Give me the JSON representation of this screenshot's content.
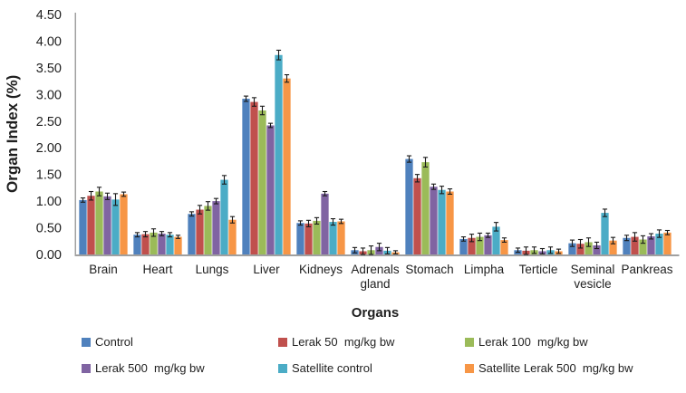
{
  "chart_data": {
    "type": "bar",
    "title": "",
    "ylabel": "Organ Index (%)",
    "xlabel": "Organs",
    "ylim": [
      0,
      4.5
    ],
    "ytick_step": 0.5,
    "ytick_decimals": 2,
    "grid": false,
    "legend_position": "bottom",
    "error_bars": true,
    "categories": [
      "Brain",
      "Heart",
      "Lungs",
      "Liver",
      "Kidneys",
      "Adrenals\ngland",
      "Stomach",
      "Limpha",
      "Terticle",
      "Seminal\nvesicle",
      "Pankreas"
    ],
    "series": [
      {
        "name": "Control",
        "color": "#4F81BD",
        "values": [
          1.02,
          0.37,
          0.76,
          2.92,
          0.59,
          0.08,
          1.79,
          0.29,
          0.08,
          0.21,
          0.31
        ],
        "errors": [
          0.04,
          0.04,
          0.04,
          0.05,
          0.04,
          0.05,
          0.06,
          0.04,
          0.04,
          0.06,
          0.05
        ]
      },
      {
        "name": "Lerak 50  mg/kg bw",
        "color": "#C0504D",
        "values": [
          1.1,
          0.38,
          0.84,
          2.86,
          0.58,
          0.06,
          1.43,
          0.31,
          0.07,
          0.2,
          0.33
        ],
        "errors": [
          0.08,
          0.05,
          0.08,
          0.08,
          0.06,
          0.06,
          0.07,
          0.07,
          0.07,
          0.08,
          0.08
        ]
      },
      {
        "name": "Lerak 100  mg/kg bw",
        "color": "#9BBB59",
        "values": [
          1.18,
          0.41,
          0.91,
          2.7,
          0.63,
          0.08,
          1.73,
          0.33,
          0.08,
          0.23,
          0.28
        ],
        "errors": [
          0.08,
          0.07,
          0.08,
          0.08,
          0.06,
          0.08,
          0.09,
          0.07,
          0.06,
          0.08,
          0.07
        ]
      },
      {
        "name": "Lerak 500  mg/kg bw",
        "color": "#8064A2",
        "values": [
          1.09,
          0.39,
          1.0,
          2.42,
          1.14,
          0.14,
          1.27,
          0.36,
          0.06,
          0.17,
          0.34
        ],
        "errors": [
          0.06,
          0.04,
          0.05,
          0.04,
          0.04,
          0.07,
          0.05,
          0.04,
          0.05,
          0.06,
          0.05
        ]
      },
      {
        "name": "Satellite control",
        "color": "#4BACC6",
        "values": [
          1.03,
          0.37,
          1.4,
          3.74,
          0.61,
          0.07,
          1.21,
          0.52,
          0.08,
          0.78,
          0.39
        ],
        "errors": [
          0.11,
          0.04,
          0.08,
          0.09,
          0.06,
          0.06,
          0.07,
          0.08,
          0.06,
          0.07,
          0.07
        ]
      },
      {
        "name": "Satellite Lerak 500  mg/kg bw",
        "color": "#F79646",
        "values": [
          1.13,
          0.33,
          0.65,
          3.3,
          0.62,
          0.04,
          1.18,
          0.27,
          0.06,
          0.26,
          0.41
        ],
        "errors": [
          0.04,
          0.03,
          0.06,
          0.07,
          0.04,
          0.03,
          0.05,
          0.04,
          0.04,
          0.06,
          0.04
        ]
      }
    ],
    "colors": {
      "axis": "#a0a0a0",
      "text": "#1f1f1f",
      "error_bar": "#1a1a1a",
      "background": "#ffffff"
    }
  }
}
